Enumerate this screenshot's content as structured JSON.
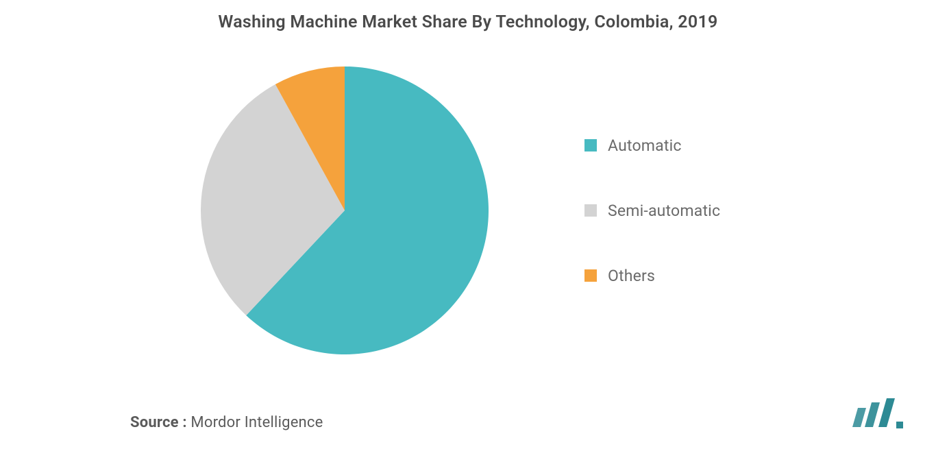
{
  "chart": {
    "type": "pie",
    "title": "Washing Machine Market Share By Technology, Colombia, 2019",
    "title_fontsize": 25,
    "title_color": "#4a4a4a",
    "title_weight": 600,
    "background_color": "#ffffff",
    "radius": 210,
    "start_angle_deg": -90,
    "slices": [
      {
        "label": "Automatic",
        "value": 62,
        "color": "#47bac1"
      },
      {
        "label": "Semi-automatic",
        "value": 30,
        "color": "#d3d3d3"
      },
      {
        "label": "Others",
        "value": 8,
        "color": "#f5a23c"
      }
    ],
    "legend": {
      "position": "right",
      "swatch_size": 18,
      "label_fontsize": 23,
      "label_color": "#6a6a6a",
      "gap": 68
    }
  },
  "footer": {
    "source_label": "Source :",
    "source_value": "Mordor Intelligence",
    "source_label_weight": 700,
    "source_fontsize": 22,
    "source_color": "#5a5a5a"
  },
  "logo": {
    "bar_color": "#2d8a94",
    "bg_color": "#ffffff"
  }
}
